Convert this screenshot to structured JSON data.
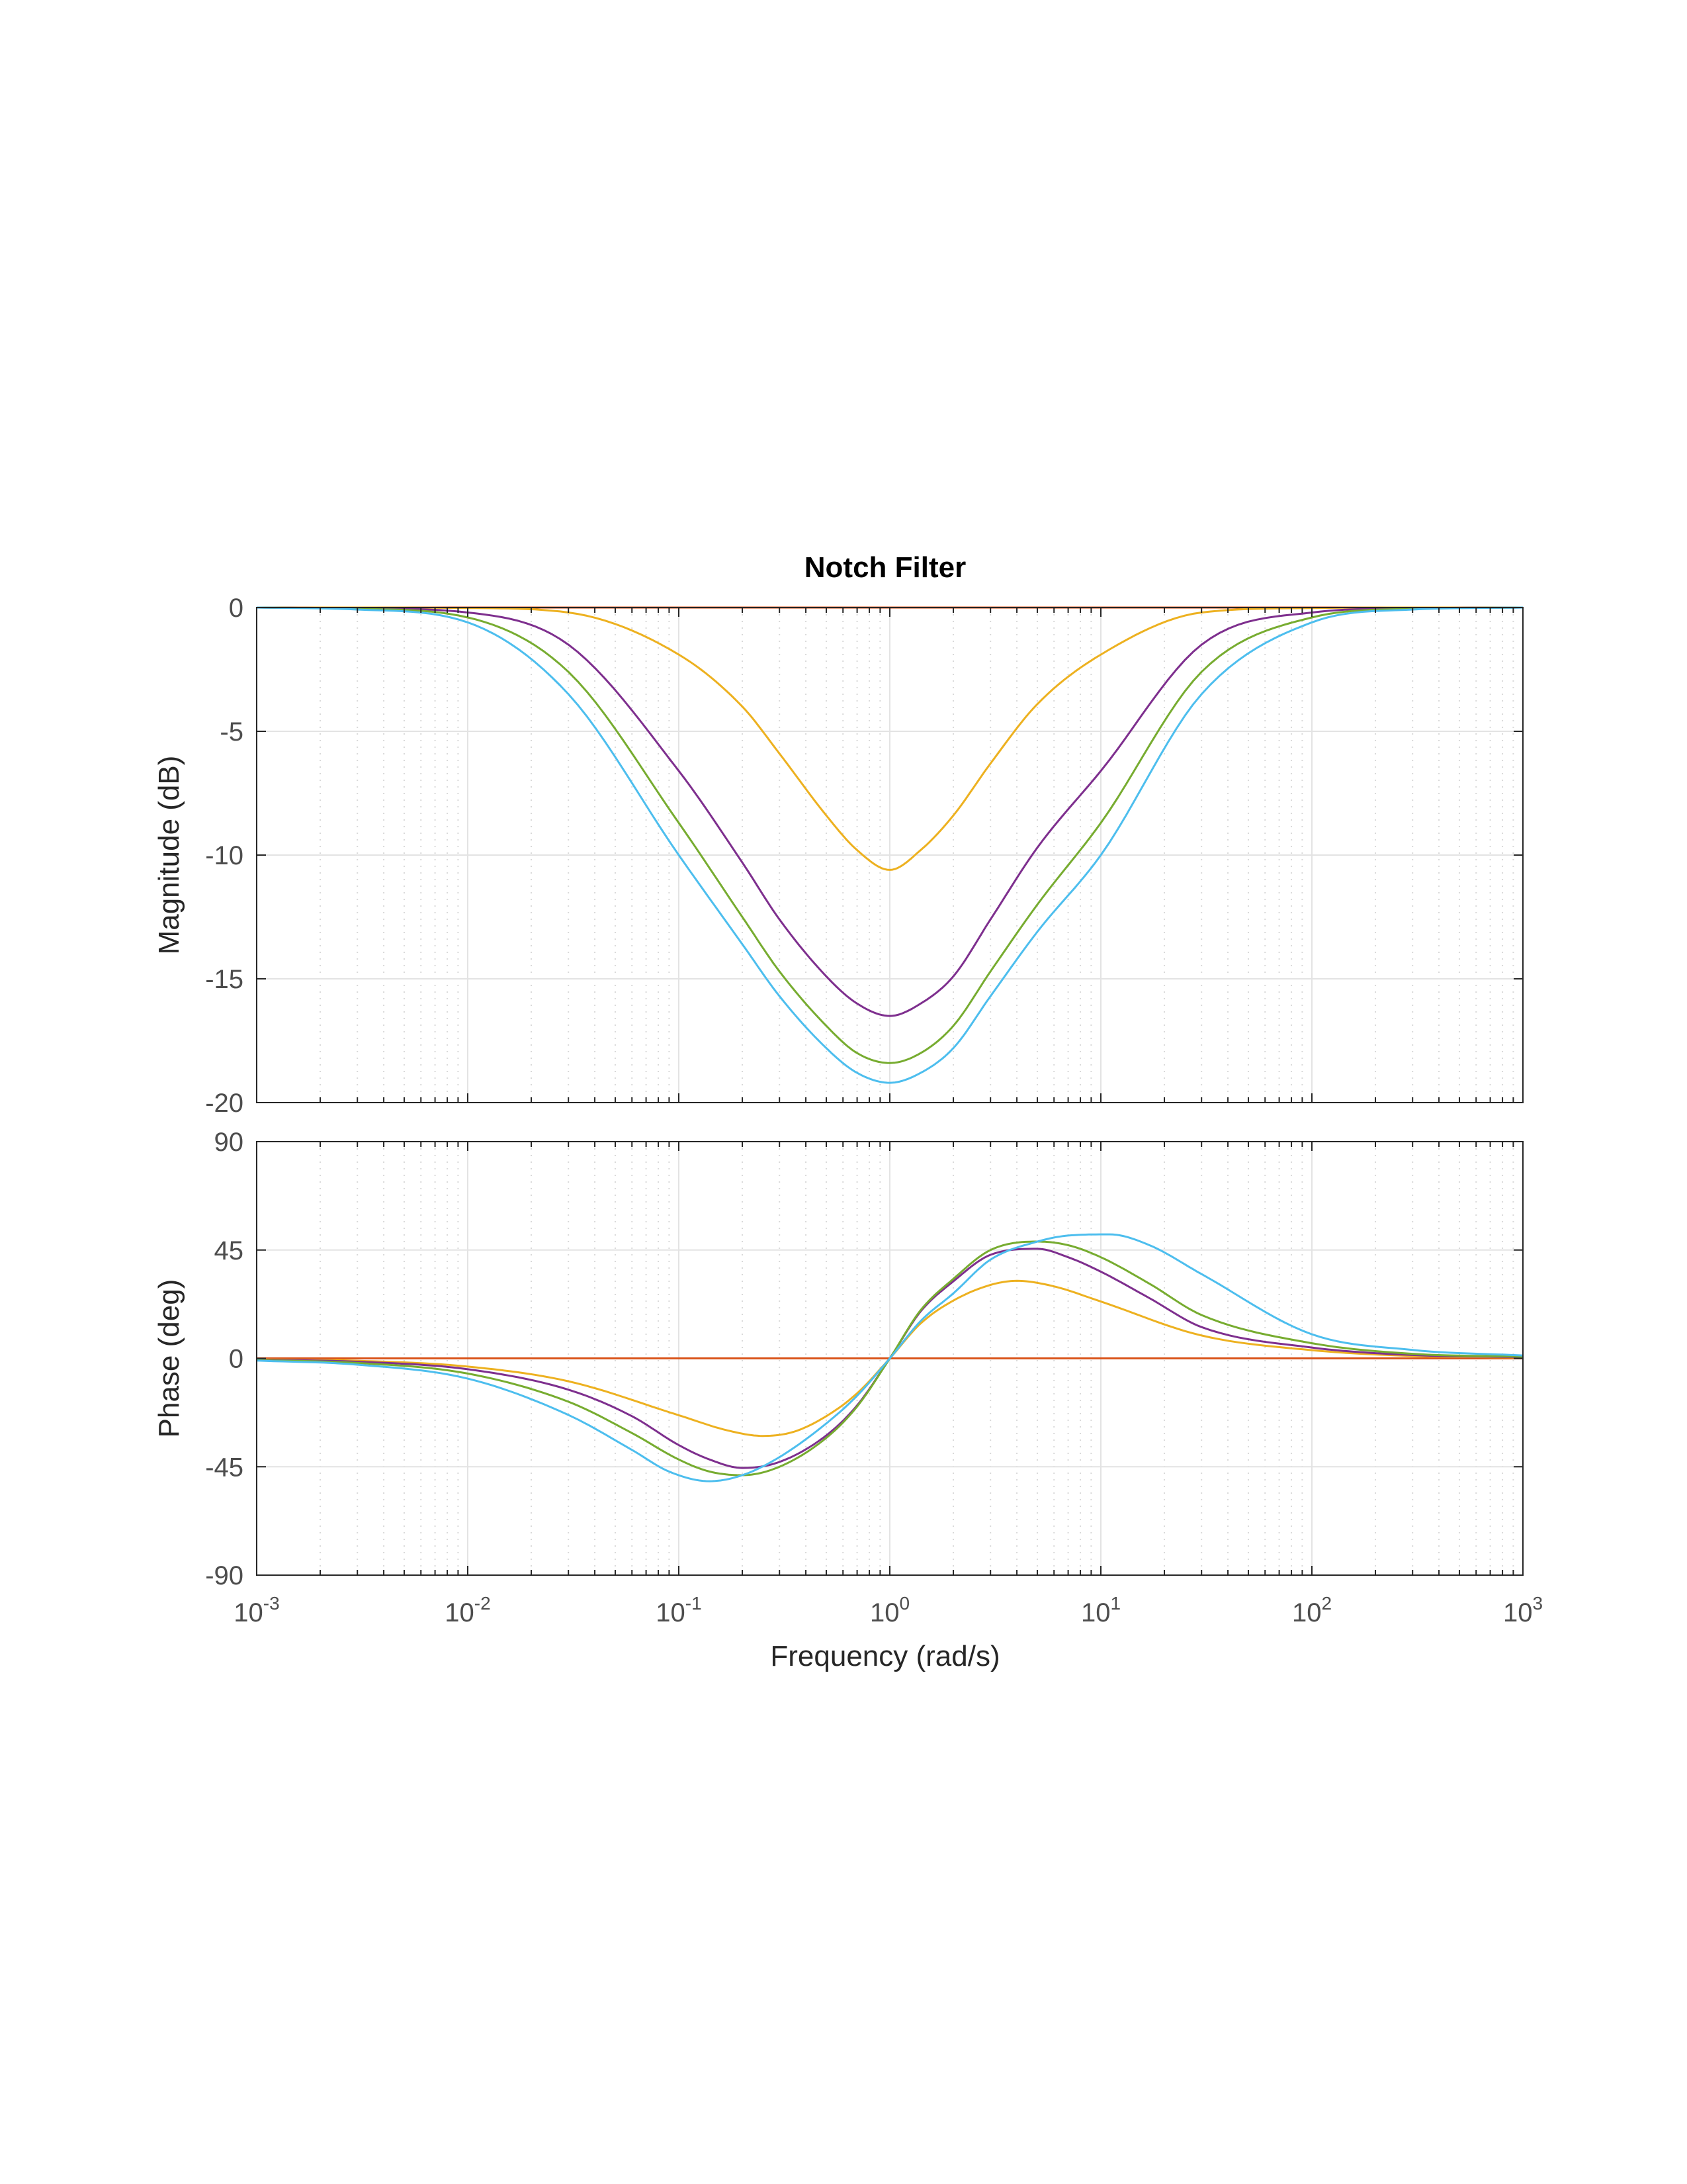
{
  "chart_data": {
    "type": "line",
    "title": "Notch Filter",
    "xlabel": "Frequency  (rad/s)",
    "x_scale": "log",
    "xlim": [
      0.001,
      1000
    ],
    "x_ticks": [
      0.001,
      0.01,
      0.1,
      1,
      10,
      100,
      1000
    ],
    "x_tick_labels": [
      {
        "base": "10",
        "exp": "-3"
      },
      {
        "base": "10",
        "exp": "-2"
      },
      {
        "base": "10",
        "exp": "-1"
      },
      {
        "base": "10",
        "exp": "0"
      },
      {
        "base": "10",
        "exp": "1"
      },
      {
        "base": "10",
        "exp": "2"
      },
      {
        "base": "10",
        "exp": "3"
      }
    ],
    "grid": true,
    "subplots": [
      {
        "id": "magnitude",
        "ylabel": "Magnitude (dB)",
        "ylim": [
          -20,
          0
        ],
        "y_ticks": [
          0,
          -5,
          -10,
          -15,
          -20
        ],
        "y_tick_labels": [
          "0",
          "-5",
          "-10",
          "-15",
          "-20"
        ],
        "series": [
          {
            "color": "#d95319",
            "x": [
              0.001,
              0.01,
              0.1,
              1,
              10,
              100,
              1000
            ],
            "y": [
              0,
              0,
              0,
              0,
              0,
              0,
              0
            ]
          },
          {
            "color": "#edb120",
            "x": [
              0.001,
              0.003,
              0.01,
              0.03,
              0.1,
              0.2,
              0.3,
              0.5,
              0.7,
              1,
              1.4,
              2,
              3,
              5,
              10,
              30,
              100,
              300,
              1000
            ],
            "y": [
              0,
              0,
              -0.02,
              -0.2,
              -1.9,
              -4.0,
              -5.9,
              -8.4,
              -9.8,
              -10.6,
              -9.8,
              -8.4,
              -6.3,
              -3.9,
              -1.9,
              -0.2,
              -0.02,
              0,
              0
            ]
          },
          {
            "color": "#7e2f8e",
            "x": [
              0.001,
              0.003,
              0.01,
              0.03,
              0.1,
              0.2,
              0.3,
              0.5,
              0.7,
              1,
              1.4,
              2,
              3,
              5,
              10,
              30,
              100,
              300,
              1000
            ],
            "y": [
              0,
              -0.03,
              -0.2,
              -1.5,
              -6.6,
              -10.3,
              -12.6,
              -14.9,
              -16.0,
              -16.5,
              -16.0,
              -14.9,
              -12.6,
              -9.7,
              -6.6,
              -1.5,
              -0.2,
              -0.03,
              0
            ]
          },
          {
            "color": "#77ac30",
            "x": [
              0.001,
              0.003,
              0.01,
              0.03,
              0.1,
              0.2,
              0.3,
              0.5,
              0.7,
              1,
              1.4,
              2,
              3,
              5,
              10,
              30,
              100,
              300,
              1000
            ],
            "y": [
              0,
              -0.05,
              -0.4,
              -2.6,
              -8.7,
              -12.5,
              -14.7,
              -16.9,
              -18.0,
              -18.4,
              -18.0,
              -16.9,
              -14.7,
              -12.0,
              -8.7,
              -2.6,
              -0.4,
              -0.05,
              0
            ]
          },
          {
            "color": "#4dbeee",
            "x": [
              0.001,
              0.003,
              0.01,
              0.03,
              0.1,
              0.2,
              0.3,
              0.5,
              0.7,
              1,
              1.4,
              2,
              3,
              5,
              10,
              30,
              100,
              300,
              1000
            ],
            "y": [
              0,
              -0.08,
              -0.6,
              -3.5,
              -10.0,
              -13.6,
              -15.7,
              -17.8,
              -18.8,
              -19.2,
              -18.8,
              -17.8,
              -15.7,
              -13.1,
              -10.0,
              -3.5,
              -0.6,
              -0.08,
              0
            ]
          }
        ]
      },
      {
        "id": "phase",
        "ylabel": "Phase (deg)",
        "ylim": [
          -90,
          90
        ],
        "y_ticks": [
          90,
          45,
          0,
          -45,
          -90
        ],
        "y_tick_labels": [
          "90",
          "45",
          "0",
          "-45",
          "-90"
        ],
        "series": [
          {
            "color": "#d95319",
            "x": [
              0.001,
              0.01,
              0.1,
              1,
              10,
              100,
              1000
            ],
            "y": [
              0,
              0,
              0,
              0,
              0,
              0,
              0
            ]
          },
          {
            "color": "#edb120",
            "x": [
              0.001,
              0.003,
              0.01,
              0.03,
              0.1,
              0.17,
              0.25,
              0.35,
              0.5,
              0.7,
              1,
              1.4,
              2,
              3,
              4,
              6,
              10,
              30,
              100,
              300,
              1000
            ],
            "y": [
              -0.4,
              -1.0,
              -3.4,
              -9.5,
              -23.6,
              -29.9,
              -32.2,
              -30.5,
              -24.0,
              -14.5,
              0,
              14.5,
              24.0,
              30.5,
              32.2,
              29.9,
              23.6,
              9.5,
              3.4,
              1.0,
              0.4
            ]
          },
          {
            "color": "#7e2f8e",
            "x": [
              0.001,
              0.003,
              0.01,
              0.03,
              0.06,
              0.1,
              0.14,
              0.2,
              0.3,
              0.5,
              0.7,
              1,
              1.4,
              2,
              3,
              5,
              7,
              10,
              17,
              30,
              100,
              300,
              1000
            ],
            "y": [
              -0.5,
              -1.4,
              -4.5,
              -13.0,
              -24.0,
              -36.0,
              -42.0,
              -45.5,
              -43.0,
              -32.0,
              -19.5,
              0,
              19.5,
              32.0,
              43.0,
              45.5,
              42.0,
              36.0,
              25.0,
              13.0,
              4.5,
              1.4,
              0.5
            ]
          },
          {
            "color": "#77ac30",
            "x": [
              0.001,
              0.003,
              0.01,
              0.03,
              0.06,
              0.1,
              0.14,
              0.2,
              0.3,
              0.5,
              0.7,
              1,
              1.4,
              2,
              3,
              5,
              7,
              10,
              17,
              30,
              100,
              300,
              1000
            ],
            "y": [
              -0.7,
              -1.9,
              -6.3,
              -18.0,
              -31.0,
              -42.0,
              -47.0,
              -48.5,
              -45.0,
              -33.0,
              -20.0,
              0,
              20.0,
              33.0,
              45.0,
              48.5,
              47.0,
              42.0,
              31.0,
              18.0,
              6.3,
              1.9,
              0.7
            ]
          },
          {
            "color": "#4dbeee",
            "x": [
              0.001,
              0.003,
              0.01,
              0.03,
              0.06,
              0.09,
              0.14,
              0.2,
              0.3,
              0.5,
              0.7,
              1,
              1.4,
              2,
              3,
              5,
              7,
              11,
              17,
              30,
              100,
              300,
              1000
            ],
            "y": [
              -0.9,
              -2.6,
              -8.4,
              -23.5,
              -38.0,
              -47.0,
              -51.0,
              -48.5,
              -41.0,
              -27.0,
              -15.5,
              0,
              15.5,
              27.0,
              41.0,
              48.5,
              51.0,
              51.5,
              47.0,
              35.0,
              10.0,
              3.5,
              1.2
            ]
          }
        ]
      }
    ]
  }
}
